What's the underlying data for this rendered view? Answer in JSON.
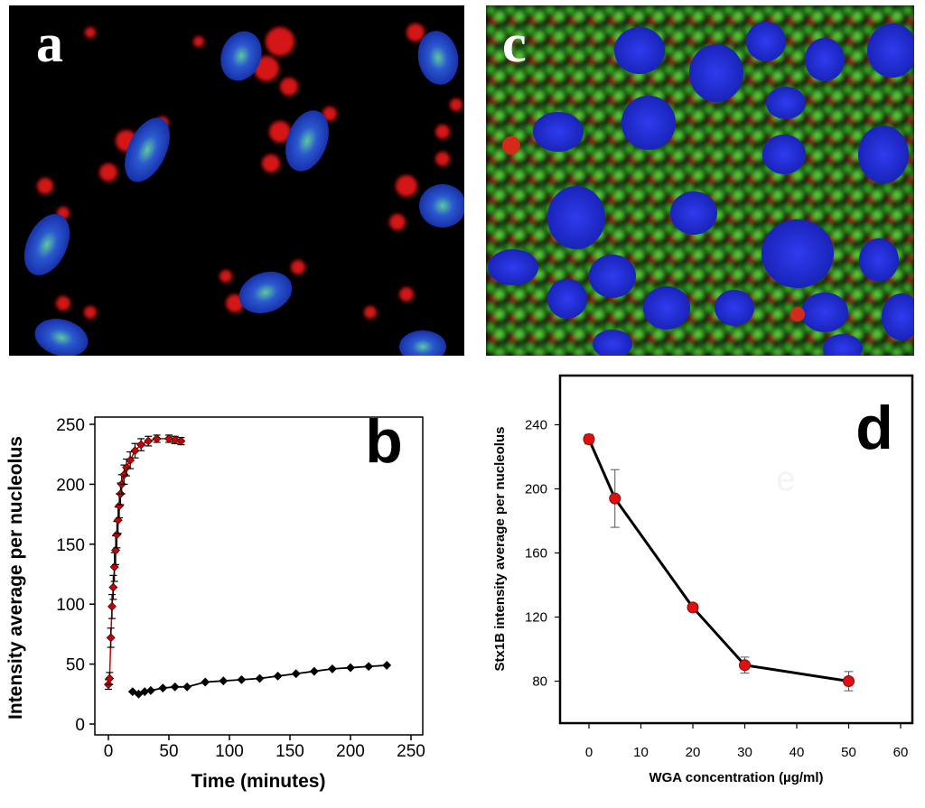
{
  "panels": {
    "a": {
      "letter": "a"
    },
    "c": {
      "letter": "c"
    }
  },
  "chart_data": [
    {
      "panel": "b",
      "type": "scatter",
      "title": "",
      "xlabel": "Time (minutes)",
      "ylabel": "Intensity average per nucleolus",
      "xlim": [
        0,
        250
      ],
      "ylim": [
        0,
        250
      ],
      "xticks": [
        0,
        50,
        100,
        150,
        200,
        250
      ],
      "yticks": [
        0,
        50,
        100,
        150,
        200,
        250
      ],
      "series": [
        {
          "color": "#cc0000",
          "marker": "diamond",
          "fit_line": true,
          "points": [
            [
              0,
              33
            ],
            [
              1,
              38
            ],
            [
              2,
              72
            ],
            [
              3,
              98
            ],
            [
              4,
              114
            ],
            [
              5,
              131
            ],
            [
              6,
              145
            ],
            [
              7,
              158
            ],
            [
              8,
              170
            ],
            [
              9,
              182
            ],
            [
              10,
              192
            ],
            [
              11,
              200
            ],
            [
              13,
              208
            ],
            [
              15,
              214
            ],
            [
              18,
              220
            ],
            [
              22,
              228
            ],
            [
              27,
              233
            ],
            [
              33,
              236
            ],
            [
              40,
              238
            ],
            [
              50,
              238
            ],
            [
              55,
              237
            ],
            [
              60,
              236
            ]
          ],
          "errors": [
            4,
            5,
            8,
            10,
            10,
            12,
            12,
            11,
            11,
            10,
            9,
            8,
            8,
            7,
            7,
            6,
            5,
            4,
            3,
            3,
            3,
            3
          ]
        },
        {
          "color": "#000000",
          "marker": "diamond",
          "fit_line": false,
          "points": [
            [
              20,
              27
            ],
            [
              25,
              25
            ],
            [
              30,
              27
            ],
            [
              35,
              28
            ],
            [
              45,
              30
            ],
            [
              55,
              31
            ],
            [
              65,
              31
            ],
            [
              80,
              35
            ],
            [
              95,
              36
            ],
            [
              110,
              37
            ],
            [
              125,
              38
            ],
            [
              140,
              40
            ],
            [
              155,
              42
            ],
            [
              170,
              44
            ],
            [
              185,
              46
            ],
            [
              200,
              47
            ],
            [
              215,
              48
            ],
            [
              230,
              49
            ]
          ]
        }
      ],
      "annotations": {
        "letter": "b"
      }
    },
    {
      "panel": "d",
      "type": "line",
      "title": "",
      "xlabel": "WGA concentration (µg/ml)",
      "ylabel": "Stx1B intensity average per nucleolus",
      "xlim": [
        -5,
        60
      ],
      "ylim": [
        60,
        260
      ],
      "xticks": [
        0,
        10,
        20,
        30,
        40,
        50,
        60
      ],
      "yticks": [
        80,
        120,
        160,
        200,
        240
      ],
      "series": [
        {
          "color": "#000000",
          "marker_color": "#e01010",
          "points": [
            [
              0,
              231
            ],
            [
              5,
              194
            ],
            [
              20,
              126
            ],
            [
              30,
              90
            ],
            [
              50,
              80
            ]
          ],
          "errors": [
            3,
            18,
            2,
            5,
            6
          ]
        }
      ],
      "annotations": {
        "letter": "d",
        "faint_letter": "e"
      }
    }
  ]
}
